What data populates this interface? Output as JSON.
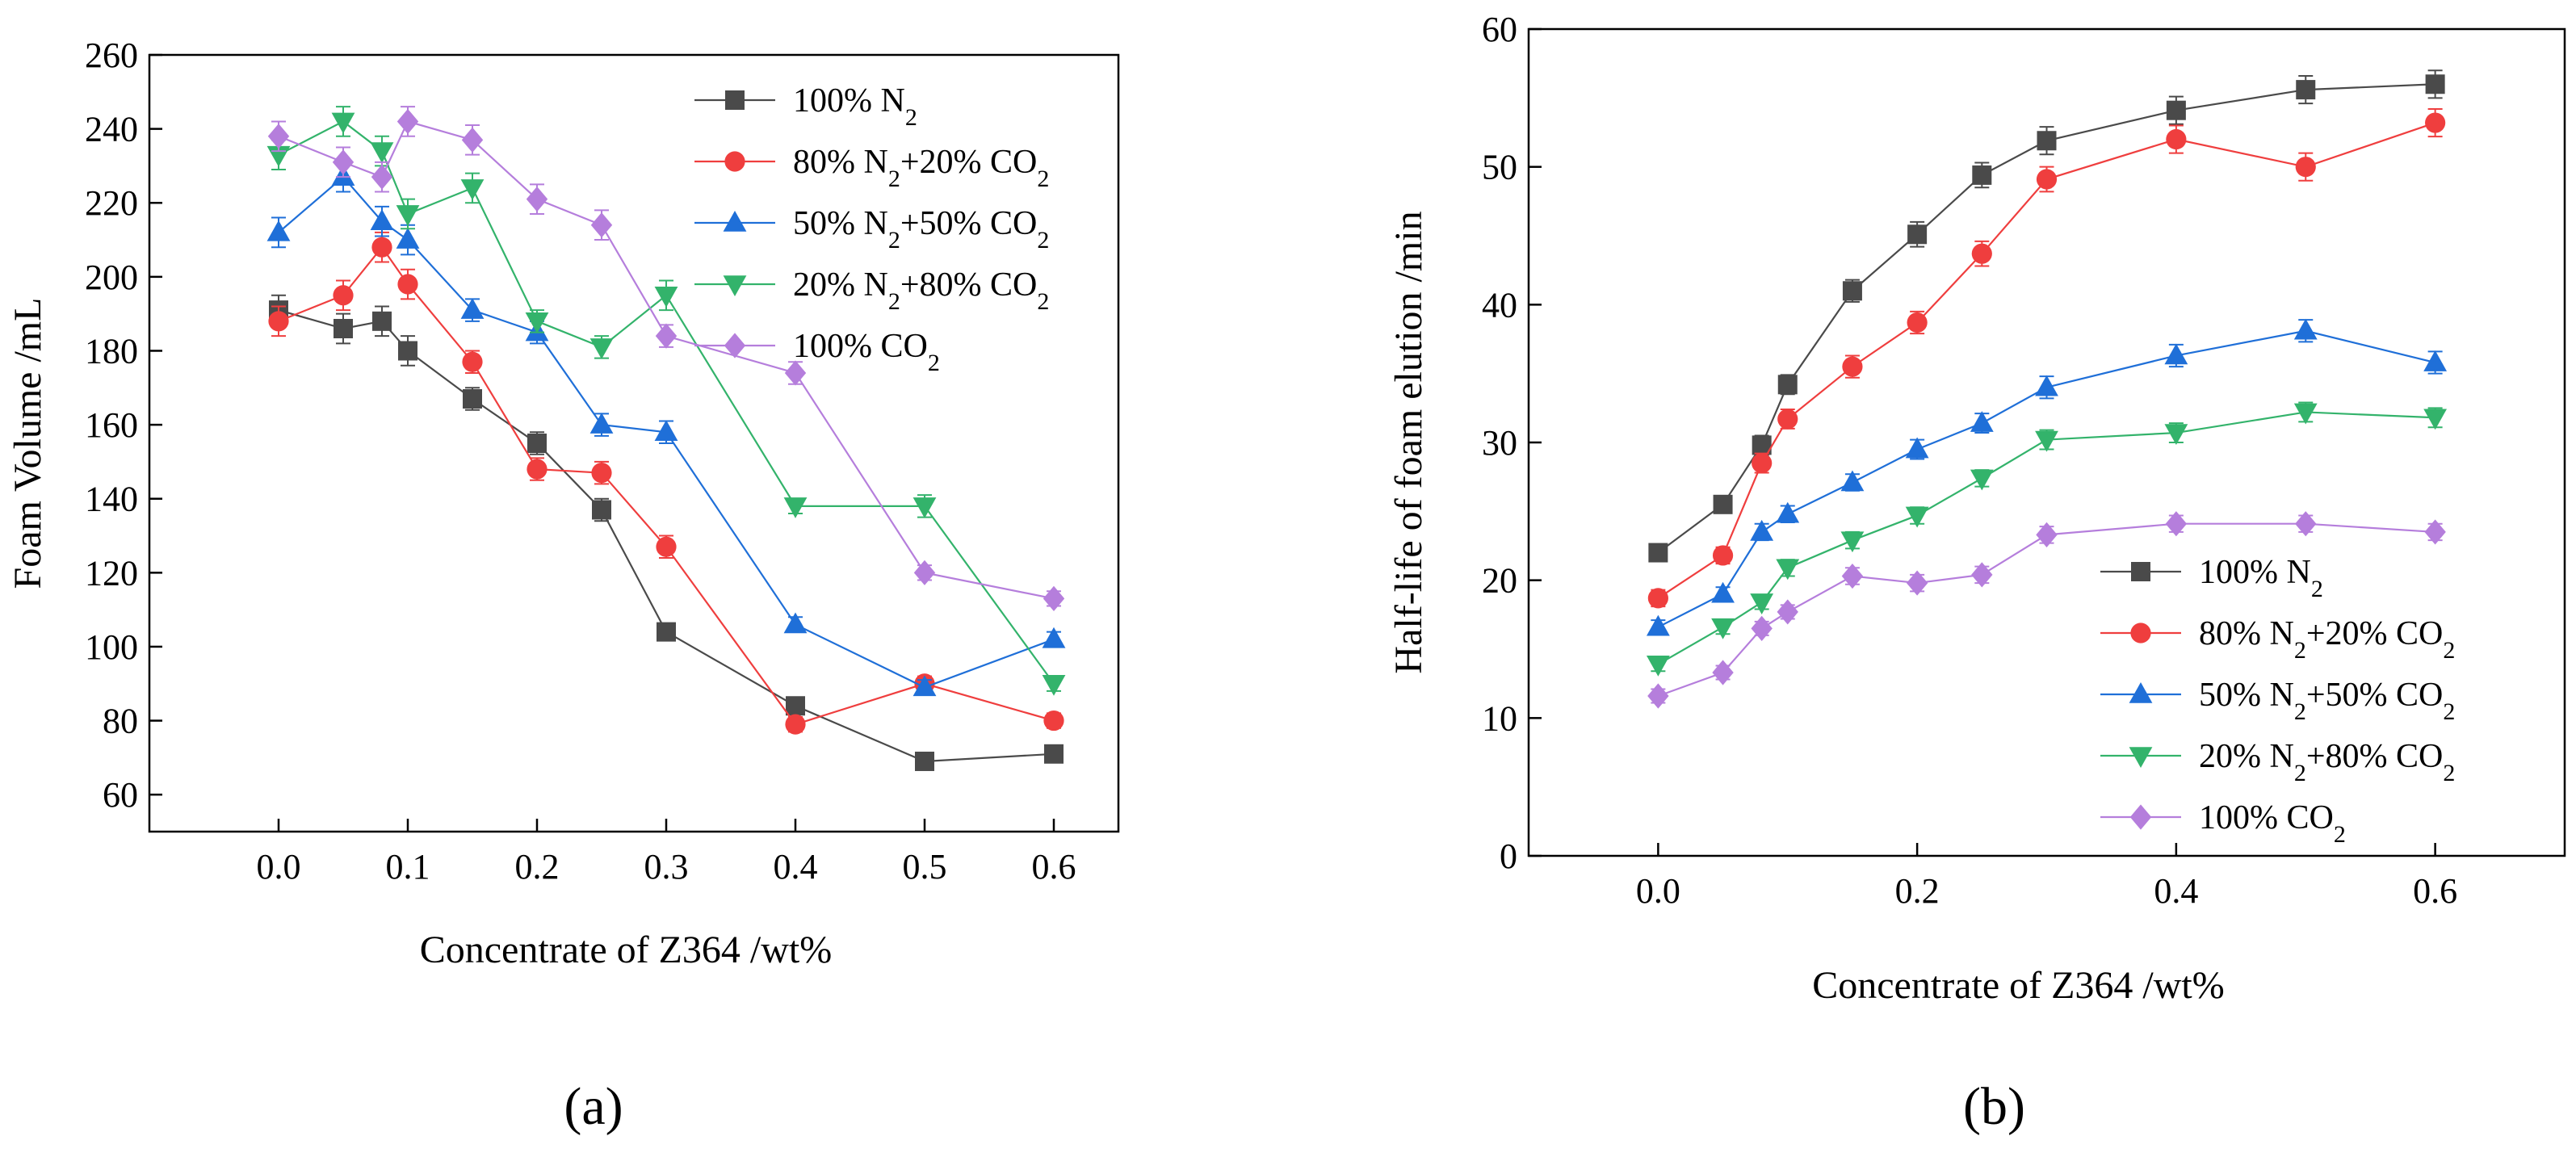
{
  "chart_data": [
    {
      "type": "line",
      "panel_label": "(a)",
      "xlabel": "Concentrate of Z364 /wt%",
      "ylabel": "Foam Volume /mL",
      "xlim": [
        -0.1,
        0.65
      ],
      "ylim": [
        50,
        260
      ],
      "x_ticks": [
        "0.0",
        "0.1",
        "0.2",
        "0.3",
        "0.4",
        "0.5",
        "0.6"
      ],
      "y_ticks": [
        "60",
        "80",
        "100",
        "120",
        "140",
        "160",
        "180",
        "200",
        "220",
        "240",
        "260"
      ],
      "legend_position": "top-right",
      "x": [
        0.0,
        0.05,
        0.08,
        0.1,
        0.15,
        0.2,
        0.25,
        0.3,
        0.4,
        0.5,
        0.6
      ],
      "series": [
        {
          "name": "100% N",
          "sub": "2",
          "tail": "",
          "tail_sub": "",
          "color": "#4a4a4a",
          "marker": "square",
          "values": [
            191,
            186,
            188,
            180,
            167,
            155,
            137,
            104,
            84,
            69,
            71
          ],
          "errors": [
            4,
            4,
            4,
            4,
            3,
            3,
            3,
            2,
            2,
            2,
            2
          ]
        },
        {
          "name": "80% N",
          "sub": "2",
          "tail": "+20% CO",
          "tail_sub": "2",
          "color": "#ef3e3e",
          "marker": "circle",
          "values": [
            188,
            195,
            208,
            198,
            177,
            148,
            147,
            127,
            79,
            90,
            80
          ],
          "errors": [
            4,
            4,
            4,
            4,
            3,
            3,
            3,
            3,
            2,
            2,
            2
          ]
        },
        {
          "name": "50% N",
          "sub": "2",
          "tail": "+50% CO",
          "tail_sub": "2",
          "color": "#1f6fd8",
          "marker": "triangle-up",
          "values": [
            212,
            227,
            215,
            210,
            191,
            185,
            160,
            158,
            106,
            89,
            102
          ],
          "errors": [
            4,
            4,
            4,
            4,
            3,
            3,
            3,
            3,
            2,
            2,
            2
          ]
        },
        {
          "name": "20% N",
          "sub": "2",
          "tail": "+80% CO",
          "tail_sub": "2",
          "color": "#33b36b",
          "marker": "triangle-down",
          "values": [
            233,
            242,
            234,
            217,
            224,
            188,
            181,
            195,
            138,
            138,
            90
          ],
          "errors": [
            4,
            4,
            4,
            4,
            4,
            3,
            3,
            4,
            2,
            3,
            2
          ]
        },
        {
          "name": "100% CO",
          "sub": "2",
          "tail": "",
          "tail_sub": "",
          "color": "#b57edc",
          "marker": "diamond",
          "values": [
            238,
            231,
            227,
            242,
            237,
            221,
            214,
            184,
            174,
            120,
            113
          ],
          "errors": [
            4,
            4,
            4,
            4,
            4,
            4,
            4,
            3,
            3,
            2,
            2
          ]
        }
      ]
    },
    {
      "type": "line",
      "panel_label": "(b)",
      "xlabel": "Concentrate of Z364 /wt%",
      "ylabel": "Half-life of foam elution /min",
      "xlim": [
        -0.1,
        0.7
      ],
      "ylim": [
        0,
        60
      ],
      "x_ticks": [
        "0.0",
        "0.2",
        "0.4",
        "0.6"
      ],
      "y_ticks": [
        "0",
        "10",
        "20",
        "30",
        "40",
        "50",
        "60"
      ],
      "legend_position": "bottom-right",
      "x": [
        0.0,
        0.05,
        0.08,
        0.1,
        0.15,
        0.2,
        0.25,
        0.3,
        0.4,
        0.5,
        0.6
      ],
      "series": [
        {
          "name": "100% N",
          "sub": "2",
          "tail": "",
          "tail_sub": "",
          "color": "#4a4a4a",
          "marker": "square",
          "values": [
            22,
            25.5,
            29.8,
            34.2,
            41,
            45.1,
            49.4,
            51.9,
            54.1,
            55.6,
            56
          ],
          "errors": [
            0.6,
            0.6,
            0.7,
            0.7,
            0.8,
            0.9,
            0.9,
            1.0,
            1.0,
            1.0,
            1.0
          ]
        },
        {
          "name": "80% N",
          "sub": "2",
          "tail": "+20% CO",
          "tail_sub": "2",
          "color": "#ef3e3e",
          "marker": "circle",
          "values": [
            18.7,
            21.8,
            28.5,
            31.7,
            35.5,
            38.7,
            43.7,
            49.1,
            52,
            50,
            53.2
          ],
          "errors": [
            0.6,
            0.6,
            0.7,
            0.7,
            0.8,
            0.8,
            0.9,
            0.9,
            1.0,
            1.0,
            1.0
          ]
        },
        {
          "name": "50% N",
          "sub": "2",
          "tail": "+50% CO",
          "tail_sub": "2",
          "color": "#1f6fd8",
          "marker": "triangle-up",
          "values": [
            16.6,
            19,
            23.5,
            24.8,
            27.1,
            29.5,
            31.4,
            34,
            36.3,
            38.1,
            35.8
          ],
          "errors": [
            0.5,
            0.5,
            0.6,
            0.6,
            0.6,
            0.7,
            0.7,
            0.8,
            0.8,
            0.8,
            0.8
          ]
        },
        {
          "name": "20% N",
          "sub": "2",
          "tail": "+80% CO",
          "tail_sub": "2",
          "color": "#33b36b",
          "marker": "triangle-down",
          "values": [
            13.9,
            16.6,
            18.4,
            20.9,
            22.9,
            24.7,
            27.4,
            30.2,
            30.7,
            32.2,
            31.8
          ],
          "errors": [
            0.5,
            0.5,
            0.5,
            0.6,
            0.6,
            0.6,
            0.6,
            0.7,
            0.7,
            0.7,
            0.7
          ]
        },
        {
          "name": "100% CO",
          "sub": "2",
          "tail": "",
          "tail_sub": "",
          "color": "#b57edc",
          "marker": "diamond",
          "values": [
            11.6,
            13.3,
            16.5,
            17.7,
            20.3,
            19.8,
            20.4,
            23.3,
            24.1,
            24.1,
            23.5
          ],
          "errors": [
            0.5,
            0.5,
            0.5,
            0.5,
            0.6,
            0.6,
            0.6,
            0.6,
            0.6,
            0.6,
            0.6
          ]
        }
      ]
    }
  ]
}
